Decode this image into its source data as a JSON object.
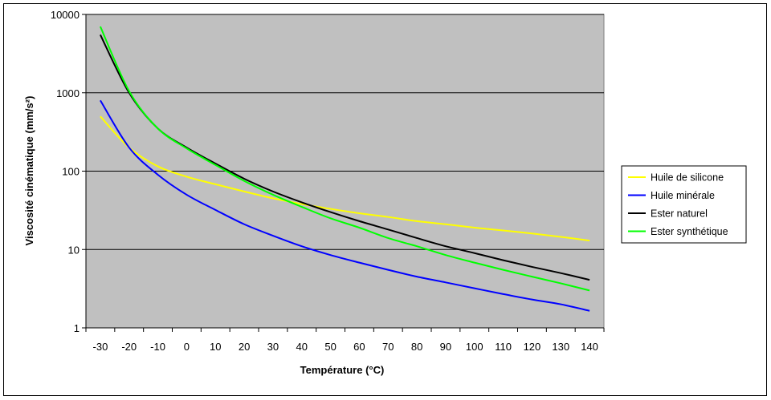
{
  "chart_data": {
    "type": "line",
    "title": "",
    "xlabel": "Température (°C)",
    "ylabel": "Viscosité cinématique (mm/s²)",
    "yscale": "log",
    "ylim": [
      1,
      10000
    ],
    "yticks": [
      "1",
      "10",
      "100",
      "1000",
      "10000"
    ],
    "categories": [
      "-30",
      "-20",
      "-10",
      "0",
      "10",
      "20",
      "30",
      "40",
      "50",
      "60",
      "70",
      "80",
      "90",
      "100",
      "110",
      "120",
      "130",
      "140"
    ],
    "grid": true,
    "legend_position": "right",
    "series": [
      {
        "name": "Huile de silicone",
        "color": "#ffff00",
        "values": [
          500,
          200,
          115,
          85,
          68,
          55,
          45,
          38,
          33,
          29,
          26,
          23,
          21,
          19,
          17.5,
          16,
          14.5,
          13
        ]
      },
      {
        "name": "Huile minérale",
        "color": "#0000ff",
        "values": [
          800,
          200,
          90,
          50,
          32,
          21,
          15,
          11,
          8.5,
          6.8,
          5.5,
          4.5,
          3.8,
          3.2,
          2.7,
          2.3,
          2.0,
          1.65
        ]
      },
      {
        "name": "Ester naturel",
        "color": "#000000",
        "values": [
          5500,
          1000,
          350,
          200,
          125,
          80,
          55,
          40,
          30,
          23,
          18,
          14,
          11,
          9,
          7.3,
          6,
          5,
          4.1
        ]
      },
      {
        "name": "Ester synthétique",
        "color": "#00ff00",
        "values": [
          7000,
          1050,
          350,
          195,
          120,
          75,
          50,
          35,
          25,
          19,
          14,
          11,
          8.5,
          6.8,
          5.5,
          4.5,
          3.7,
          3.0
        ]
      }
    ]
  }
}
